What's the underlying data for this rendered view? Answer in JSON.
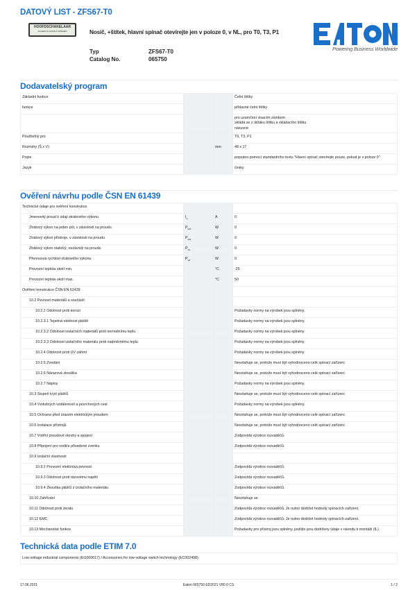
{
  "header": {
    "title": "DATOVÝ LIST - ZFS67-T0",
    "product_image_text": "HOOFDSCHAKELAAR",
    "product_image_subtext": "ALLEEN IN STAND 0 OPENEN",
    "description": "Nosič, +štítek, hlavní spínač otevírejte jen v poloze 0, v NL, pro T0, T3, P1",
    "typ_label": "Typ",
    "typ_value": "ZFS67-T0",
    "catalog_label": "Catalog No.",
    "catalog_value": "065750",
    "logo_text": "EATON",
    "tagline": "Powering Business Worldwide",
    "brand_color": "#1a6fc9"
  },
  "section1": {
    "title": "Dodavatelský program",
    "rows": [
      {
        "label": "Základní funkce",
        "sym": "",
        "unit": "",
        "value": [
          "Čelní štítky"
        ]
      },
      {
        "label": "funkce",
        "sym": "",
        "unit": "",
        "value": [
          "přídavné čelní štítky"
        ]
      },
      {
        "label": "",
        "sym": "",
        "unit": "",
        "value": [
          "pro uzamčení visacím zámkem",
          "skládá se z držáku štítku a vkládacího štítku",
          "násuvné"
        ]
      },
      {
        "label": "Použitelný pro",
        "sym": "",
        "unit": "",
        "value": [
          "T0, T3, P1"
        ]
      },
      {
        "label": "Rozměry (Š x V)",
        "sym": "",
        "unit": "mm",
        "value": [
          "48 x 17"
        ]
      },
      {
        "label": "Popis",
        "sym": "",
        "unit": "",
        "value": [
          "popsáno pomocí standardního textu \"Hlavní spínač otevírejte pouze, pokud je v poloze 0\""
        ]
      },
      {
        "label": "Jazyk",
        "sym": "",
        "unit": "",
        "value": [
          "česky"
        ]
      }
    ]
  },
  "section2": {
    "title": "Ověření návrhu podle ČSN EN 61439",
    "rows": [
      {
        "label": "Technické údaje pro ověření konstrukce",
        "lvl": 0,
        "sym": "",
        "sub": "",
        "unit": "",
        "value": ""
      },
      {
        "label": "Jmenovitý proud k údaji ztrátového výkonu",
        "lvl": 1,
        "sym": "I",
        "sub": "n",
        "unit": "A",
        "value": "0"
      },
      {
        "label": "Ztrátový výkon na jeden pól, v závislosti na proudu",
        "lvl": 1,
        "sym": "P",
        "sub": "vid",
        "unit": "W",
        "value": "0"
      },
      {
        "label": "Ztrátový výkon přístroje, v závislosti na proudu",
        "lvl": 1,
        "sym": "P",
        "sub": "vid",
        "unit": "W",
        "value": "0"
      },
      {
        "label": "Ztrátový výkon statický, nezávislý na proudu",
        "lvl": 1,
        "sym": "P",
        "sub": "vs",
        "unit": "W",
        "value": "0"
      },
      {
        "label": "Přenosová rychlost ztrátového výkonu",
        "lvl": 1,
        "sym": "P",
        "sub": "ve",
        "unit": "W",
        "value": "0"
      },
      {
        "label": "Provozní teplota okolí min.",
        "lvl": 1,
        "sym": "",
        "sub": "",
        "unit": "°C",
        "value": "-25"
      },
      {
        "label": "Provozní teplota okolí max.",
        "lvl": 1,
        "sym": "",
        "sub": "",
        "unit": "°C",
        "value": "50"
      },
      {
        "label": "Ověření konstrukce ČSN EN 61439",
        "lvl": 0,
        "sym": "",
        "sub": "",
        "unit": "",
        "value": ""
      },
      {
        "label": "10.2 Pevnost materiálů a součástí",
        "lvl": 1,
        "sym": "",
        "sub": "",
        "unit": "",
        "value": ""
      },
      {
        "label": "10.2.2 Odolnost proti korozi",
        "lvl": 2,
        "sym": "",
        "sub": "",
        "unit": "",
        "value": "Požadavky normy na výrobek jsou splněny."
      },
      {
        "label": "10.2.3.1 Tepelná odolnost pláště",
        "lvl": 2,
        "sym": "",
        "sub": "",
        "unit": "",
        "value": "Požadavky normy na výrobek jsou splněny."
      },
      {
        "label": "10.2.3.2 Odolnost izolačních materiálů proti normálnímu teplu",
        "lvl": 2,
        "sym": "",
        "sub": "",
        "unit": "",
        "value": "Požadavky normy na výrobek jsou splněny."
      },
      {
        "label": "10.2.3.3 Odolnost izolačního materiálu proti nadměrnému teplu",
        "lvl": 2,
        "sym": "",
        "sub": "",
        "unit": "",
        "value": "Požadavky normy na výrobek jsou splněny."
      },
      {
        "label": "10.2.4 Odolnost proti UV záření",
        "lvl": 2,
        "sym": "",
        "sub": "",
        "unit": "",
        "value": "Požadavky normy na výrobek jsou splněny."
      },
      {
        "label": "10.2.5 Zvedání",
        "lvl": 2,
        "sym": "",
        "sub": "",
        "unit": "",
        "value": "Nevztahuje se, protože musí být vyhodnoceno celé spínací zařízení."
      },
      {
        "label": "10.2.6 Nárazová zkouška",
        "lvl": 2,
        "sym": "",
        "sub": "",
        "unit": "",
        "value": "Nevztahuje se, protože musí být vyhodnoceno celé spínací zařízení."
      },
      {
        "label": "10.2.7 Nápisy",
        "lvl": 2,
        "sym": "",
        "sub": "",
        "unit": "",
        "value": "Požadavky normy na výrobek jsou splněny."
      },
      {
        "label": "10.3 Stupeň krytí plášťů",
        "lvl": 1,
        "sym": "",
        "sub": "",
        "unit": "",
        "value": "Nevztahuje se, protože musí být vyhodnoceno celé spínací zařízení."
      },
      {
        "label": "10.4 Vzdušných vzdáleností a povrchových cest",
        "lvl": 1,
        "sym": "",
        "sub": "",
        "unit": "",
        "value": "Požadavky normy na výrobek jsou splněny."
      },
      {
        "label": "10.5 Ochrana před úrazem elektrickým proudem",
        "lvl": 1,
        "sym": "",
        "sub": "",
        "unit": "",
        "value": "Nevztahuje se, protože musí být vyhodnoceno celé spínací zařízení."
      },
      {
        "label": "10.6 Instalace přístrojů",
        "lvl": 1,
        "sym": "",
        "sub": "",
        "unit": "",
        "value": "Nevztahuje se, protože musí být vyhodnoceno celé spínací zařízení."
      },
      {
        "label": "10.7 Vnitřní proudové okruhy a spojení",
        "lvl": 1,
        "sym": "",
        "sub": "",
        "unit": "",
        "value": "Zodpovídá výrobce rozvaděčů."
      },
      {
        "label": "10.8 Připojení pro vodiče přivedené zvenku",
        "lvl": 1,
        "sym": "",
        "sub": "",
        "unit": "",
        "value": "Zodpovídá výrobce rozvaděčů."
      },
      {
        "label": "10.9 Izolační vlastnosti",
        "lvl": 1,
        "sym": "",
        "sub": "",
        "unit": "",
        "value": ""
      },
      {
        "label": "10.9.2 Provozní elektrická pevnost",
        "lvl": 2,
        "sym": "",
        "sub": "",
        "unit": "",
        "value": "Zodpovídá výrobce rozvaděčů."
      },
      {
        "label": "10.9.3 Odolnost proti rázovému napětí",
        "lvl": 2,
        "sym": "",
        "sub": "",
        "unit": "",
        "value": "Zodpovídá výrobce rozvaděčů."
      },
      {
        "label": "10.9.4 Zkouška plášťů z izolačního materiálu",
        "lvl": 2,
        "sym": "",
        "sub": "",
        "unit": "",
        "value": "Zodpovídá výrobce rozvaděčů."
      },
      {
        "label": "10.10 Zahřívání",
        "lvl": 1,
        "sym": "",
        "sub": "",
        "unit": "",
        "value": "Nevztahuje se."
      },
      {
        "label": "10.11 Odolnost proti zkratu",
        "lvl": 1,
        "sym": "",
        "sub": "",
        "unit": "",
        "value": "Zodpovídá výrobce rozvaděčů. Je nutno dodržet hodnoty spínacích zařízení."
      },
      {
        "label": "10.12 EMC",
        "lvl": 1,
        "sym": "",
        "sub": "",
        "unit": "",
        "value": "Zodpovídá výrobce rozvaděčů. Je nutno dodržet hodnoty spínacích zařízení."
      },
      {
        "label": "10.13 Mechanické funkce",
        "lvl": 1,
        "sym": "",
        "sub": "",
        "unit": "",
        "value": "Požadavky pro přístroj jsou splněny, jestliže jsou dodrženy údaje v návodu k montáži (IL)."
      }
    ]
  },
  "section3": {
    "title": "Technická data podle ETIM 7.0",
    "text": "Low-voltage industrial components (EG000017) / Accessories for low-voltage switch technology (EC002498)"
  },
  "footer": {
    "date": "17.06.2021",
    "doc": "Eaton 065750 ED2021 V80.0 CS",
    "page": "1 / 2"
  }
}
